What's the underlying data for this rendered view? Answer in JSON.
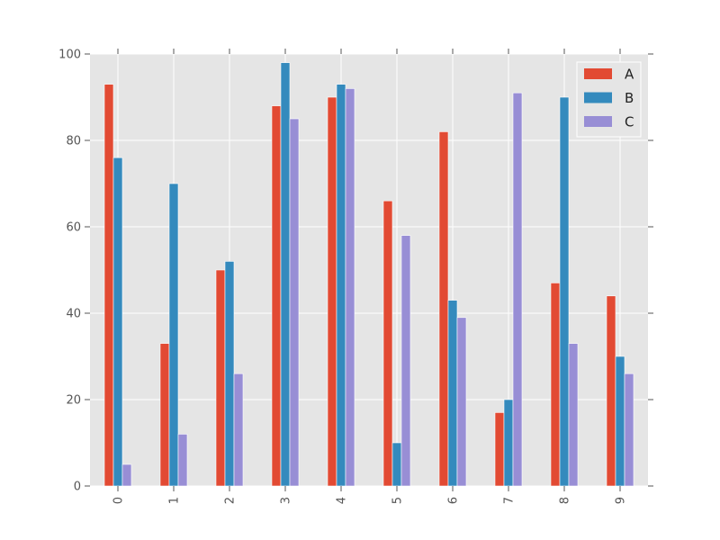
{
  "chart_data": {
    "type": "bar",
    "title": "",
    "xlabel": "",
    "ylabel": "",
    "categories": [
      "0",
      "1",
      "2",
      "3",
      "4",
      "5",
      "6",
      "7",
      "8",
      "9"
    ],
    "series": [
      {
        "name": "A",
        "color": "#e24a33",
        "values": [
          93,
          33,
          50,
          88,
          90,
          66,
          82,
          17,
          47,
          44
        ]
      },
      {
        "name": "B",
        "color": "#348abd",
        "values": [
          76,
          70,
          52,
          98,
          93,
          10,
          43,
          20,
          90,
          30
        ]
      },
      {
        "name": "C",
        "color": "#988ed5",
        "values": [
          5,
          12,
          26,
          85,
          92,
          58,
          39,
          91,
          33,
          26
        ]
      }
    ],
    "ylim": [
      0,
      100
    ],
    "yticks": [
      0,
      20,
      40,
      60,
      80,
      100
    ],
    "grid": true,
    "legend_position": "top-right",
    "background_color": "#e5e5e5",
    "grid_color": "#ffffff"
  }
}
